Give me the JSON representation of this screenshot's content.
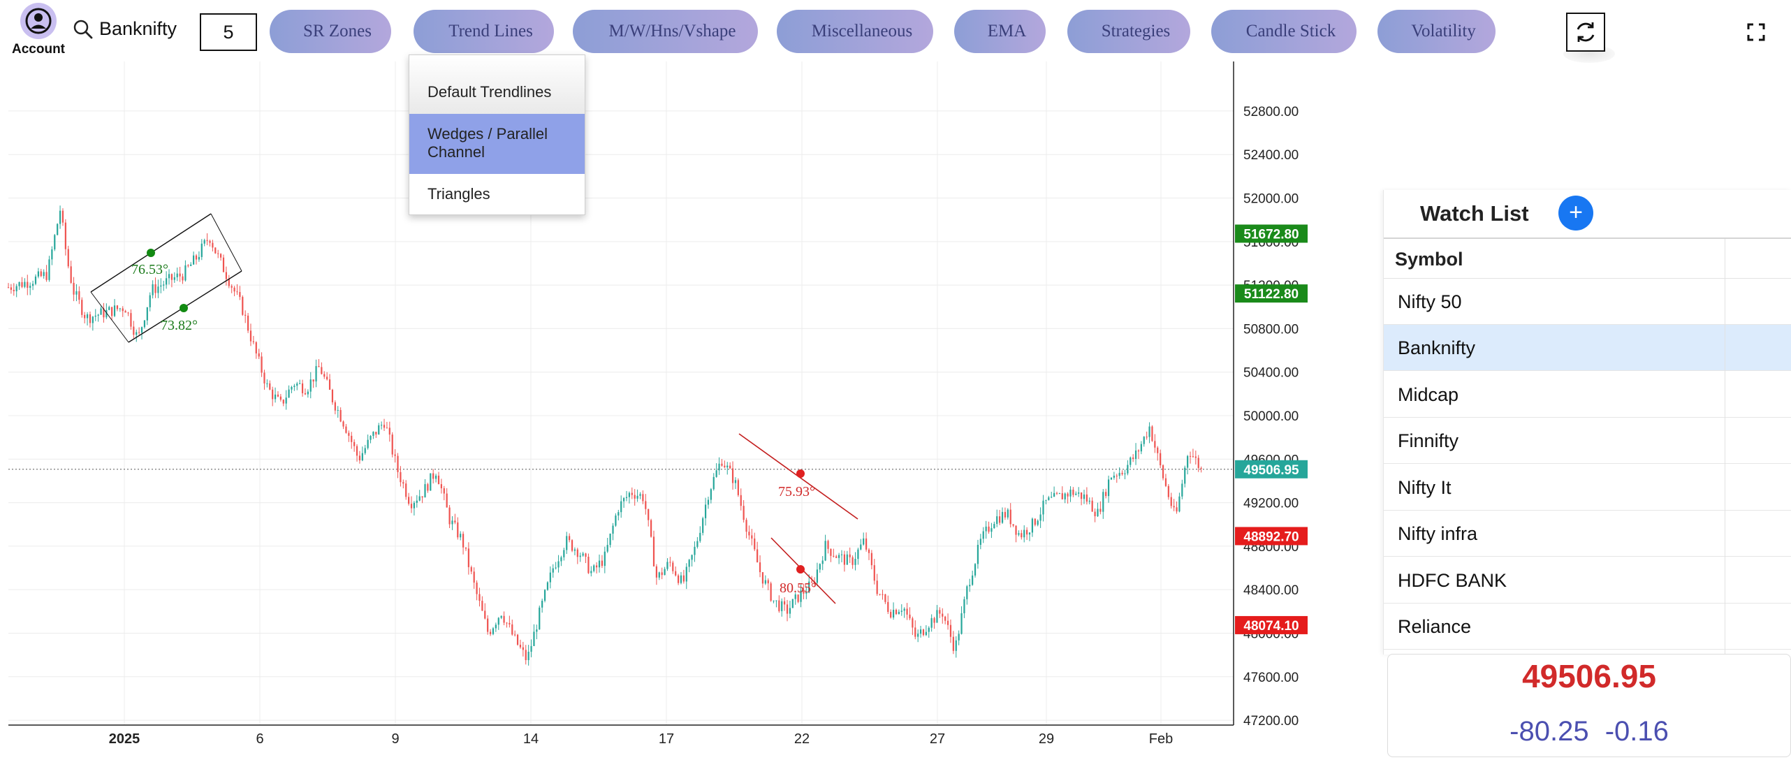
{
  "account": {
    "label": "Account",
    "icon": "account-circle-icon"
  },
  "search": {
    "symbol": "Banknifty",
    "icon": "search-icon"
  },
  "interval": "5",
  "toolbar": {
    "menus": [
      {
        "id": "sr-zones",
        "label": "SR Zones"
      },
      {
        "id": "trend-lines",
        "label": "Trend Lines"
      },
      {
        "id": "patterns",
        "label": "M/W/Hns/Vshape"
      },
      {
        "id": "miscellaneous",
        "label": "Miscellaneous"
      },
      {
        "id": "ema",
        "label": "EMA"
      },
      {
        "id": "strategies",
        "label": "Strategies"
      },
      {
        "id": "candle-stick",
        "label": "Candle Stick"
      },
      {
        "id": "volatility",
        "label": "Volatility"
      }
    ],
    "refresh_icon": "refresh-icon",
    "fullscreen_icon": "fullscreen-icon"
  },
  "trend_menu": {
    "items": [
      {
        "label": "Default Trendlines",
        "selected": false
      },
      {
        "label": "Wedges / Parallel Channel",
        "selected": true
      },
      {
        "label": "Triangles",
        "selected": false
      }
    ],
    "highlight_color": "#8fa1e8"
  },
  "chart_data": {
    "type": "candlestick",
    "symbol": "Banknifty",
    "y_ticks": [
      "52800.00",
      "52400.00",
      "52000.00",
      "51600.00",
      "51200.00",
      "50800.00",
      "50400.00",
      "50000.00",
      "49600.00",
      "49200.00",
      "48800.00",
      "48400.00",
      "48000.00",
      "47600.00",
      "47200.00"
    ],
    "ylim": [
      46950,
      53050
    ],
    "x_ticks": [
      {
        "label": "2025",
        "bold": true
      },
      {
        "label": "6",
        "bold": false
      },
      {
        "label": "9",
        "bold": false
      },
      {
        "label": "14",
        "bold": false
      },
      {
        "label": "17",
        "bold": false
      },
      {
        "label": "22",
        "bold": false
      },
      {
        "label": "27",
        "bold": false
      },
      {
        "label": "29",
        "bold": false
      },
      {
        "label": "Feb",
        "bold": false
      }
    ],
    "price_path": [
      [
        0,
        51180
      ],
      [
        3,
        51230
      ],
      [
        6,
        51300
      ],
      [
        8,
        51900
      ],
      [
        9,
        51450
      ],
      [
        10,
        51150
      ],
      [
        12,
        50900
      ],
      [
        15,
        50950
      ],
      [
        18,
        51000
      ],
      [
        20,
        50700
      ],
      [
        22,
        51150
      ],
      [
        25,
        51250
      ],
      [
        27,
        51300
      ],
      [
        29,
        51450
      ],
      [
        31,
        51650
      ],
      [
        32,
        51500
      ],
      [
        34,
        51250
      ],
      [
        36,
        51000
      ],
      [
        38,
        50600
      ],
      [
        40,
        50250
      ],
      [
        42,
        50100
      ],
      [
        44,
        50300
      ],
      [
        46,
        50250
      ],
      [
        48,
        50450
      ],
      [
        50,
        50150
      ],
      [
        52,
        49900
      ],
      [
        54,
        49600
      ],
      [
        56,
        49800
      ],
      [
        58,
        49950
      ],
      [
        60,
        49500
      ],
      [
        62,
        49200
      ],
      [
        64,
        49300
      ],
      [
        66,
        49500
      ],
      [
        68,
        49050
      ],
      [
        70,
        48850
      ],
      [
        72,
        48400
      ],
      [
        74,
        48000
      ],
      [
        76,
        48200
      ],
      [
        78,
        47950
      ],
      [
        80,
        47750
      ],
      [
        82,
        48200
      ],
      [
        84,
        48600
      ],
      [
        86,
        48850
      ],
      [
        88,
        48750
      ],
      [
        90,
        48550
      ],
      [
        92,
        48700
      ],
      [
        94,
        49150
      ],
      [
        96,
        49300
      ],
      [
        98,
        49250
      ],
      [
        100,
        48500
      ],
      [
        102,
        48650
      ],
      [
        104,
        48450
      ],
      [
        106,
        48800
      ],
      [
        108,
        49300
      ],
      [
        110,
        49600
      ],
      [
        112,
        49400
      ],
      [
        114,
        48950
      ],
      [
        116,
        48550
      ],
      [
        118,
        48300
      ],
      [
        120,
        48200
      ],
      [
        122,
        48350
      ],
      [
        124,
        48450
      ],
      [
        126,
        48800
      ],
      [
        128,
        48700
      ],
      [
        130,
        48650
      ],
      [
        132,
        48850
      ],
      [
        134,
        48400
      ],
      [
        136,
        48200
      ],
      [
        138,
        48250
      ],
      [
        140,
        47950
      ],
      [
        142,
        48100
      ],
      [
        144,
        48200
      ],
      [
        146,
        47850
      ],
      [
        148,
        48450
      ],
      [
        150,
        48850
      ],
      [
        152,
        49050
      ],
      [
        154,
        49100
      ],
      [
        156,
        48900
      ],
      [
        158,
        49000
      ],
      [
        160,
        49200
      ],
      [
        162,
        49250
      ],
      [
        164,
        49300
      ],
      [
        166,
        49250
      ],
      [
        168,
        49100
      ],
      [
        170,
        49450
      ],
      [
        172,
        49500
      ],
      [
        174,
        49650
      ],
      [
        176,
        49900
      ],
      [
        178,
        49450
      ],
      [
        180,
        49050
      ],
      [
        182,
        49700
      ],
      [
        184,
        49500
      ]
    ],
    "price_line": {
      "value": 49506.95
    },
    "price_badges": [
      {
        "value": 51672.8,
        "label": "51672.80",
        "color": "#1a8a1a"
      },
      {
        "value": 51122.8,
        "label": "51122.80",
        "color": "#1a8a1a"
      },
      {
        "value": 49506.95,
        "label": "49506.95",
        "color": "#26a69a"
      },
      {
        "value": 48892.7,
        "label": "48892.70",
        "color": "#e51c1c"
      },
      {
        "value": 48074.1,
        "label": "48074.10",
        "color": "#e51c1c"
      }
    ],
    "annotations": [
      {
        "label": "76.53°",
        "color": "#1a7a1a"
      },
      {
        "label": "73.82°",
        "color": "#1a7a1a"
      },
      {
        "label": "75.93°",
        "color": "#d12a2a"
      },
      {
        "label": "80.55°",
        "color": "#d12a2a"
      }
    ],
    "grid": true,
    "colors": {
      "up": "#26a69a",
      "down": "#ef5350"
    }
  },
  "watchlist": {
    "title": "Watch List",
    "add_icon": "plus-icon",
    "column": "Symbol",
    "rows": [
      {
        "symbol": "Nifty 50",
        "selected": false
      },
      {
        "symbol": "Banknifty",
        "selected": true
      },
      {
        "symbol": "Midcap",
        "selected": false
      },
      {
        "symbol": "Finnifty",
        "selected": false
      },
      {
        "symbol": "Nifty It",
        "selected": false
      },
      {
        "symbol": "Nifty infra",
        "selected": false
      },
      {
        "symbol": "HDFC BANK",
        "selected": false
      },
      {
        "symbol": "Reliance",
        "selected": false
      }
    ]
  },
  "quote": {
    "price": "49506.95",
    "change": "-80.25",
    "change_pct": "-0.16",
    "price_color": "#d12a2a"
  }
}
